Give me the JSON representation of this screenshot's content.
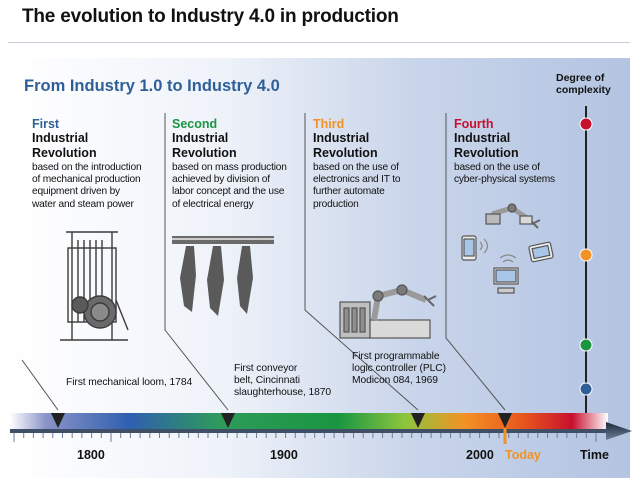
{
  "title": "The evolution to Industry 4.0 in production",
  "subtitle": "From Industry 1.0 to Industry 4.0",
  "complexity_axis": {
    "line1": "Degree of",
    "line2": "complexity"
  },
  "revolutions": [
    {
      "ordinal": "First",
      "line1": "Industrial",
      "line2": "Revolution",
      "description": [
        "based on the introduction",
        "of  mechanical production",
        "equipment driven by",
        "water and steam power"
      ],
      "color": "#2f5f97"
    },
    {
      "ordinal": "Second",
      "line1": "Industrial",
      "line2": "Revolution",
      "description": [
        "based on mass production",
        "achieved by division of",
        "labor concept and the use",
        "of electrical energy"
      ],
      "color": "#1a9641"
    },
    {
      "ordinal": "Third",
      "line1": "Industrial",
      "line2": "Revolution",
      "description": [
        "based on the use of",
        "electronics and IT to",
        "further automate",
        "production"
      ],
      "color": "#f39224"
    },
    {
      "ordinal": "Fourth",
      "line1": "Industrial",
      "line2": "Revolution",
      "description": [
        "based on the use of",
        "cyber-physical systems"
      ],
      "color": "#c8102e"
    }
  ],
  "milestones": [
    {
      "line1": "First mechanical loom, 1784"
    },
    {
      "line1": "First conveyor",
      "line2": "belt, Cincinnati",
      "line3": "slaughterhouse, 1870"
    },
    {
      "line1": "First programmable",
      "line2": "logic controller (PLC)",
      "line3": "Modicon 084, 1969"
    }
  ],
  "timeline": {
    "years": [
      "1800",
      "1900",
      "2000"
    ],
    "today_label": "Today",
    "time_label": "Time"
  },
  "complexity_dots": [
    "#c8102e",
    "#f39224",
    "#1a9641",
    "#2f5f97"
  ]
}
